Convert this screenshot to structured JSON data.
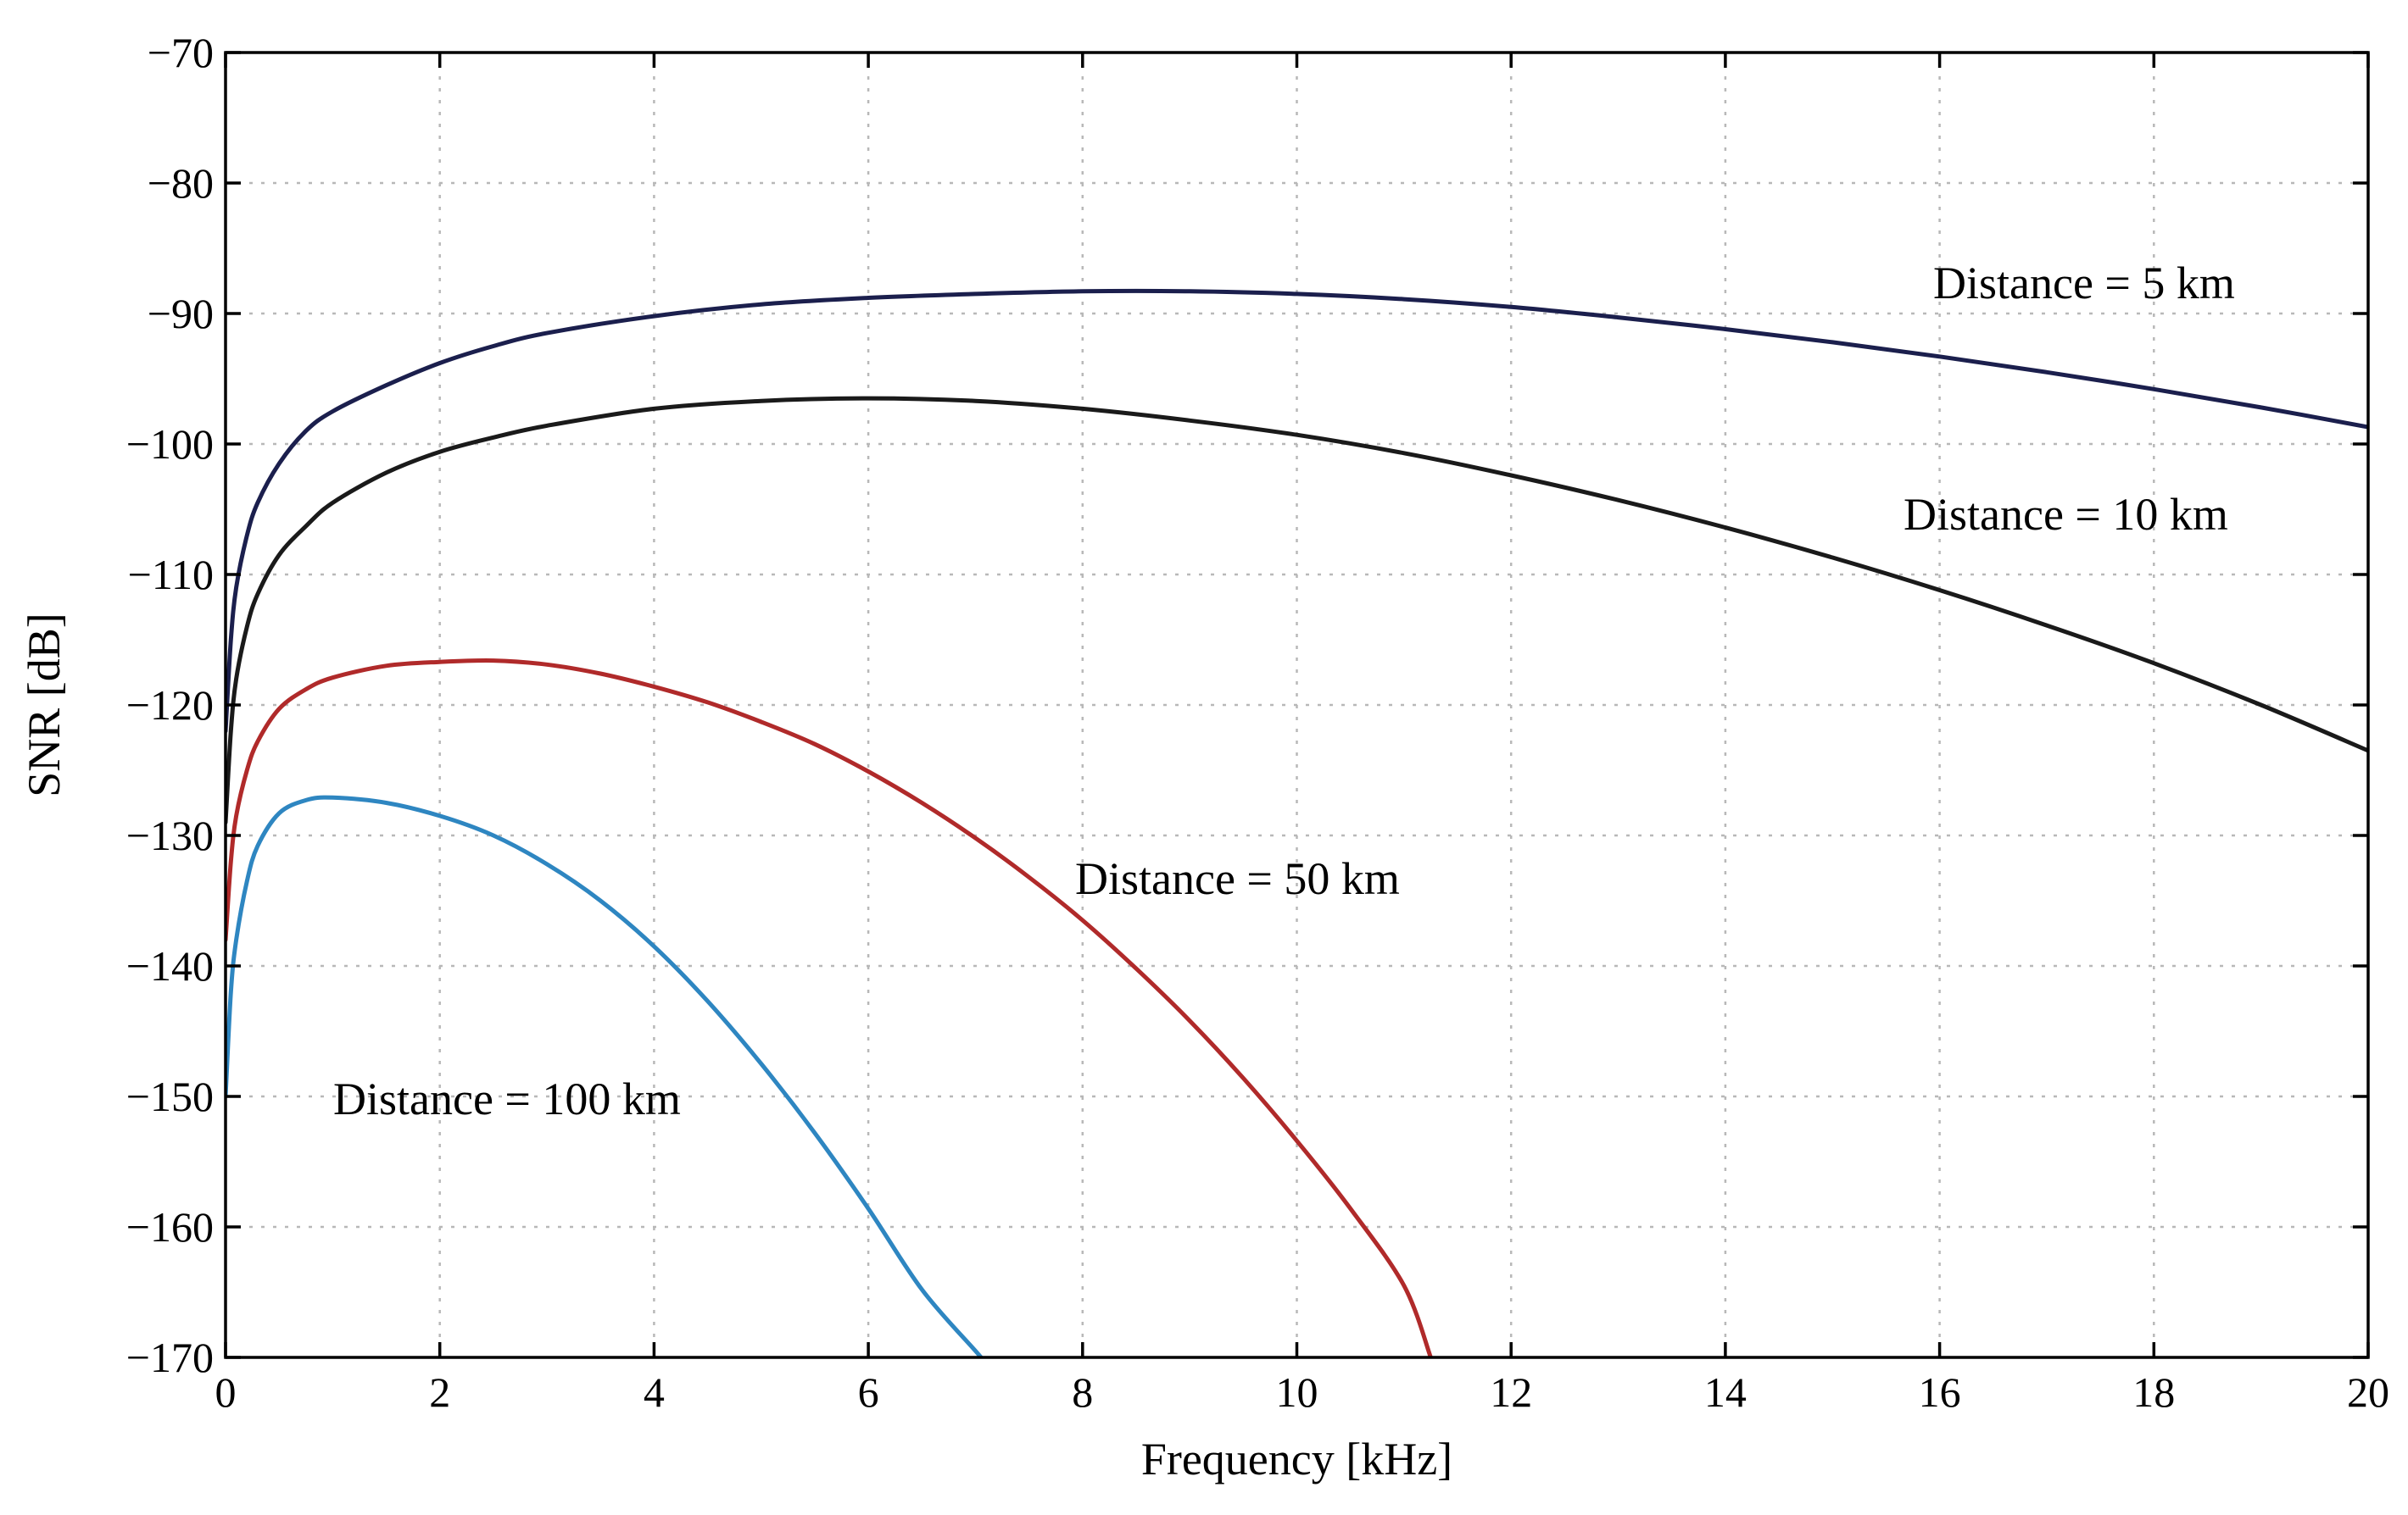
{
  "chart_data": {
    "type": "line",
    "title": "",
    "xlabel": "Frequency [kHz]",
    "ylabel": "SNR [dB]",
    "xlim": [
      0,
      20
    ],
    "ylim": [
      -170,
      -70
    ],
    "xticks": [
      0,
      2,
      4,
      6,
      8,
      10,
      12,
      14,
      16,
      18,
      20
    ],
    "yticks": [
      -70,
      -80,
      -90,
      -100,
      -110,
      -120,
      -130,
      -140,
      -150,
      -160,
      -170
    ],
    "xtick_labels": [
      "0",
      "2",
      "4",
      "6",
      "8",
      "10",
      "12",
      "14",
      "16",
      "18",
      "20"
    ],
    "ytick_labels": [
      "−70",
      "−80",
      "−90",
      "−100",
      "−110",
      "−120",
      "−130",
      "−140",
      "−150",
      "−160",
      "−170"
    ],
    "grid": true,
    "series": [
      {
        "name": "Distance = 5 km",
        "label": "Distance = 5 km",
        "color": "#1b1f4d",
        "x": [
          0,
          0.05,
          0.1,
          0.2,
          0.3,
          0.5,
          0.75,
          1,
          1.5,
          2,
          2.5,
          3,
          4,
          5,
          6,
          7,
          8,
          9,
          10,
          11,
          12,
          13,
          14,
          15,
          16,
          17,
          18,
          19,
          20
        ],
        "y": [
          -122,
          -115,
          -111,
          -107,
          -104.5,
          -101.5,
          -99,
          -97.5,
          -95.5,
          -93.8,
          -92.5,
          -91.5,
          -90.2,
          -89.3,
          -88.8,
          -88.5,
          -88.3,
          -88.3,
          -88.5,
          -88.9,
          -89.5,
          -90.3,
          -91.2,
          -92.2,
          -93.3,
          -94.5,
          -95.8,
          -97.2,
          -98.7
        ]
      },
      {
        "name": "Distance = 10 km",
        "label": "Distance = 10 km",
        "color": "#1a1a1a",
        "x": [
          0,
          0.05,
          0.1,
          0.2,
          0.3,
          0.5,
          0.75,
          1,
          1.5,
          2,
          2.5,
          3,
          4,
          5,
          6,
          7,
          8,
          9,
          10,
          11,
          12,
          13,
          14,
          15,
          16,
          17,
          18,
          19,
          20
        ],
        "y": [
          -129,
          -122,
          -118,
          -114,
          -111.5,
          -108.5,
          -106.3,
          -104.5,
          -102.2,
          -100.6,
          -99.5,
          -98.6,
          -97.3,
          -96.7,
          -96.5,
          -96.7,
          -97.3,
          -98.2,
          -99.3,
          -100.7,
          -102.4,
          -104.3,
          -106.4,
          -108.7,
          -111.2,
          -113.9,
          -116.8,
          -120,
          -123.5
        ]
      },
      {
        "name": "Distance = 50 km",
        "label": "Distance = 50 km",
        "color": "#b02a2a",
        "x": [
          0,
          0.05,
          0.1,
          0.2,
          0.3,
          0.5,
          0.75,
          1,
          1.5,
          2,
          2.5,
          3,
          3.5,
          4,
          4.5,
          5,
          5.5,
          6,
          6.5,
          7,
          7.5,
          8,
          8.5,
          9,
          9.5,
          10,
          10.5,
          11,
          11.25
        ],
        "y": [
          -138,
          -132,
          -128.5,
          -125,
          -122.8,
          -120.3,
          -118.8,
          -117.9,
          -117,
          -116.7,
          -116.6,
          -116.9,
          -117.6,
          -118.6,
          -119.8,
          -121.3,
          -123,
          -125.1,
          -127.5,
          -130.2,
          -133.2,
          -136.5,
          -140.2,
          -144.2,
          -148.6,
          -153.4,
          -158.6,
          -164.5,
          -170
        ]
      },
      {
        "name": "Distance = 100 km",
        "label": "Distance = 100 km",
        "color": "#2e86c1",
        "x": [
          0,
          0.05,
          0.1,
          0.2,
          0.3,
          0.5,
          0.75,
          1,
          1.5,
          2,
          2.5,
          3,
          3.5,
          4,
          4.5,
          5,
          5.5,
          6,
          6.5,
          7,
          7.05
        ],
        "y": [
          -150,
          -142,
          -138,
          -133.5,
          -130.8,
          -128.3,
          -127.3,
          -127.1,
          -127.5,
          -128.5,
          -130,
          -132.2,
          -135,
          -138.5,
          -142.7,
          -147.5,
          -152.8,
          -158.6,
          -164.8,
          -169.5,
          -170
        ]
      }
    ],
    "annotations": [
      {
        "text": "Distance = 5 km",
        "series": "Distance = 5 km"
      },
      {
        "text": "Distance = 10 km",
        "series": "Distance = 10 km"
      },
      {
        "text": "Distance = 50 km",
        "series": "Distance = 50 km"
      },
      {
        "text": "Distance = 100 km",
        "series": "Distance = 100 km"
      }
    ]
  }
}
